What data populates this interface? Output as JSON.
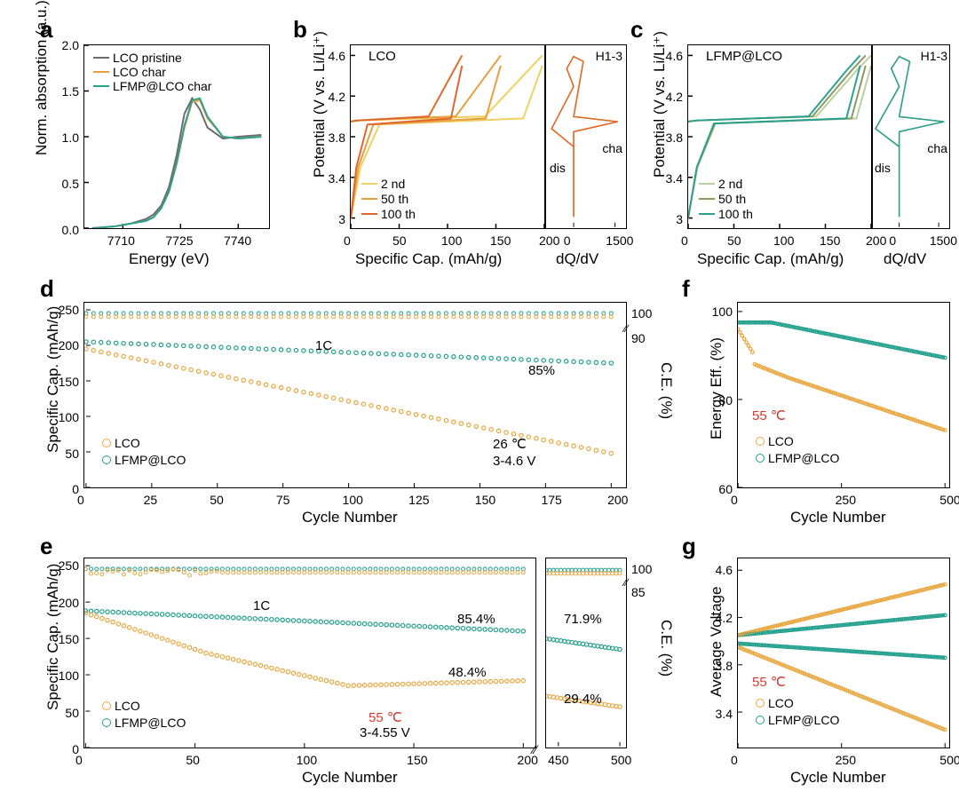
{
  "colors": {
    "gray": "#6b6b6b",
    "orange": "#e89e3c",
    "teal": "#2aa18f",
    "lco_marker": "#e8a53c",
    "lfmp_marker": "#1f9e8c",
    "red_annot": "#d43a2f"
  },
  "panel_a": {
    "letter": "a",
    "type": "line",
    "title": "",
    "xlabel": "Energy (eV)",
    "ylabel": "Norm. absorption (a.u.)",
    "xlim": [
      7700,
      7748
    ],
    "ylim": [
      0,
      2.0
    ],
    "xticks": [
      7710,
      7725,
      7740
    ],
    "yticks": [
      0,
      0.5,
      1.0,
      1.5,
      2.0
    ],
    "legend": [
      {
        "label": "LCO pristine",
        "color": "#6b6b6b"
      },
      {
        "label": "LCO char",
        "color": "#e89e3c"
      },
      {
        "label": "LFMP@LCO char",
        "color": "#2aa18f"
      }
    ],
    "series": [
      {
        "color": "#6b6b6b",
        "x": [
          7702,
          7708,
          7712,
          7716,
          7718,
          7720,
          7722,
          7724,
          7726,
          7728,
          7730,
          7732,
          7736,
          7740,
          7746
        ],
        "y": [
          0.0,
          0.02,
          0.05,
          0.1,
          0.15,
          0.25,
          0.45,
          0.8,
          1.25,
          1.42,
          1.3,
          1.1,
          0.98,
          1.0,
          1.02
        ]
      },
      {
        "color": "#e89e3c",
        "x": [
          7702,
          7708,
          7712,
          7716,
          7718,
          7720,
          7722,
          7724,
          7726,
          7728,
          7730,
          7732,
          7736,
          7740,
          7746
        ],
        "y": [
          0.0,
          0.02,
          0.05,
          0.08,
          0.12,
          0.22,
          0.4,
          0.7,
          1.1,
          1.38,
          1.4,
          1.2,
          1.0,
          0.98,
          1.0
        ]
      },
      {
        "color": "#2aa18f",
        "x": [
          7702,
          7708,
          7712,
          7716,
          7718,
          7720,
          7722,
          7724,
          7726,
          7728,
          7730,
          7732,
          7736,
          7740,
          7746
        ],
        "y": [
          0.0,
          0.02,
          0.05,
          0.08,
          0.12,
          0.22,
          0.4,
          0.72,
          1.12,
          1.4,
          1.42,
          1.22,
          1.0,
          0.98,
          1.0
        ]
      }
    ]
  },
  "panel_b": {
    "letter": "b",
    "title_upper": "LCO",
    "ylabel": "Potential (V vs. Li/Li⁺)",
    "xlabel_left": "Specific Cap. (mAh/g)",
    "xlabel_right": "dQ/dV",
    "ylim": [
      2.9,
      4.7
    ],
    "yticks": [
      3,
      3.4,
      3.8,
      4.2,
      4.6
    ],
    "xlim_left": [
      0,
      200
    ],
    "xticks_left": [
      0,
      50,
      100,
      150,
      200
    ],
    "xlim_right": [
      -1000,
      1900
    ],
    "xticks_right": [
      0,
      1500
    ],
    "legend": [
      {
        "label": "2 nd",
        "color": "#f0d060"
      },
      {
        "label": "50 th",
        "color": "#e89e3c"
      },
      {
        "label": "100 th",
        "color": "#e0672b"
      }
    ],
    "annot_right": [
      "H1-3",
      "cha",
      "dis"
    ]
  },
  "panel_c": {
    "letter": "c",
    "title_upper": "LFMP@LCO",
    "ylabel": "Potential (V vs. Li/Li⁺)",
    "xlabel_left": "Specific Cap. (mAh/g)",
    "xlabel_right": "dQ/dV",
    "ylim": [
      2.9,
      4.7
    ],
    "yticks": [
      3,
      3.4,
      3.8,
      4.2,
      4.6
    ],
    "xlim_left": [
      0,
      200
    ],
    "xticks_left": [
      0,
      50,
      100,
      150,
      200
    ],
    "xlim_right": [
      -1000,
      1900
    ],
    "xticks_right": [
      0,
      1500
    ],
    "legend": [
      {
        "label": "2 nd",
        "color": "#b8cfa0"
      },
      {
        "label": "50 th",
        "color": "#8a9b5e"
      },
      {
        "label": "100 th",
        "color": "#2aa18f"
      }
    ],
    "annot_right": [
      "H1-3",
      "cha",
      "dis"
    ]
  },
  "panel_d": {
    "letter": "d",
    "ylabel_left": "Specific Cap. (mAh/g)",
    "ylabel_right": "C.E. (%)",
    "xlabel": "Cycle Number",
    "xlim": [
      0,
      205
    ],
    "xticks": [
      0,
      25,
      50,
      75,
      100,
      125,
      150,
      175,
      200
    ],
    "ylim_left": [
      0,
      260
    ],
    "yticks_left": [
      0,
      50,
      100,
      150,
      200,
      250
    ],
    "ylim_right_low": [
      85,
      92
    ],
    "ylim_right_high": [
      95,
      101
    ],
    "yticks_right": [
      90,
      100
    ],
    "annots": [
      "1C",
      "85%",
      "26 ℃",
      "3-4.6 V"
    ],
    "legend": [
      {
        "label": "LCO",
        "color": "#e8a53c"
      },
      {
        "label": "LFMP@LCO",
        "color": "#1f9e8c"
      }
    ]
  },
  "panel_e": {
    "letter": "e",
    "ylabel_left": "Specific Cap. (mAh/g)",
    "ylabel_right": "C.E. (%)",
    "xlabel": "Cycle Number",
    "xlim_left": [
      0,
      205
    ],
    "xlim_right": [
      440,
      505
    ],
    "xticks_left": [
      0,
      50,
      100,
      150,
      200
    ],
    "xticks_right": [
      450,
      500
    ],
    "ylim_left": [
      0,
      260
    ],
    "yticks_left": [
      0,
      50,
      100,
      150,
      200,
      250
    ],
    "yticks_right": [
      85,
      100
    ],
    "annots": [
      "1C",
      "85.4%",
      "71.9%",
      "48.4%",
      "29.4%",
      "55 ℃",
      "3-4.55 V"
    ],
    "legend": [
      {
        "label": "LCO",
        "color": "#e8a53c"
      },
      {
        "label": "LFMP@LCO",
        "color": "#1f9e8c"
      }
    ]
  },
  "panel_f": {
    "letter": "f",
    "ylabel": "Energy Eff. (%)",
    "xlabel": "Cycle Number",
    "xlim": [
      0,
      510
    ],
    "xticks": [
      0,
      250,
      500
    ],
    "ylim": [
      60,
      102
    ],
    "yticks": [
      60,
      80,
      100
    ],
    "annot_red": "55 ℃",
    "legend": [
      {
        "label": "LCO",
        "color": "#e8a53c"
      },
      {
        "label": "LFMP@LCO",
        "color": "#1f9e8c"
      }
    ]
  },
  "panel_g": {
    "letter": "g",
    "ylabel": "Average Voltage",
    "xlabel": "Cycle Number",
    "xlim": [
      0,
      510
    ],
    "xticks": [
      0,
      250,
      500
    ],
    "ylim": [
      3.1,
      4.7
    ],
    "yticks": [
      3.4,
      3.8,
      4.2,
      4.6
    ],
    "annot_red": "55 ℃",
    "legend": [
      {
        "label": "LCO",
        "color": "#e8a53c"
      },
      {
        "label": "LFMP@LCO",
        "color": "#1f9e8c"
      }
    ]
  }
}
